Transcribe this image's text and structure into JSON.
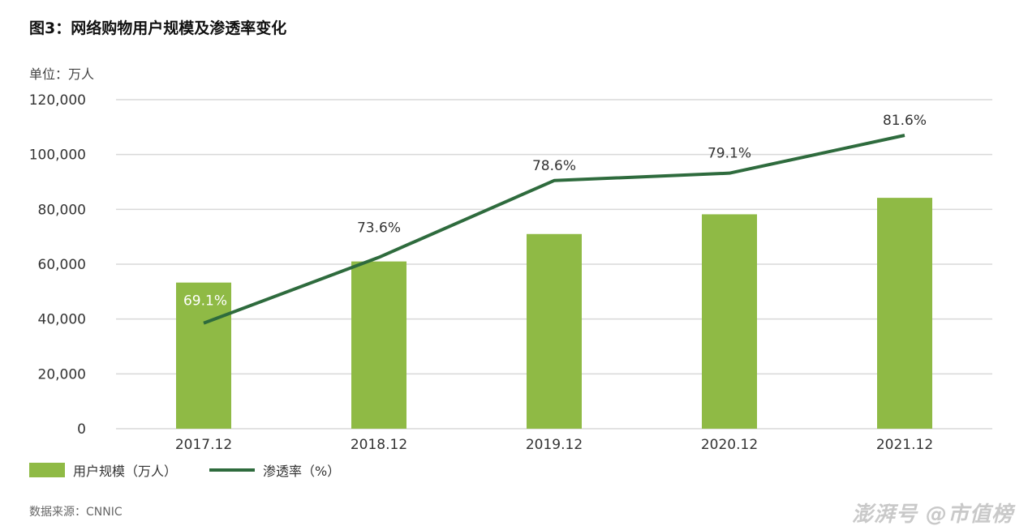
{
  "title": "图3：网络购物用户规模及渗透率变化",
  "unit_label": "单位：万人",
  "source": "数据来源：CNNIC",
  "watermark": "澎湃号 @市值榜",
  "colors": {
    "bar": "#8fba45",
    "line": "#2e6b3d",
    "grid": "#d9d9d9"
  },
  "chart_data": {
    "type": "bar",
    "categories": [
      "2017.12",
      "2018.12",
      "2019.12",
      "2020.12",
      "2021.12"
    ],
    "ylim": [
      0,
      120000
    ],
    "yticks": [
      "0",
      "20,000",
      "40,000",
      "60,000",
      "80,000",
      "100,000",
      "120,000"
    ],
    "ytick_values": [
      0,
      20000,
      40000,
      60000,
      80000,
      100000,
      120000
    ],
    "grid": true,
    "legend_position": "bottom-left",
    "series": [
      {
        "name": "用户规模（万人）",
        "type": "bar",
        "values": [
          53300,
          61000,
          71000,
          78200,
          84200
        ]
      },
      {
        "name": "渗透率（%）",
        "type": "line",
        "values": [
          69.1,
          73.6,
          78.6,
          79.1,
          81.6
        ],
        "labels": [
          "69.1%",
          "73.6%",
          "78.6%",
          "79.1%",
          "81.6%"
        ],
        "plotted_on_primary_axis": [
          38500,
          62500,
          90500,
          93200,
          107000
        ]
      }
    ]
  }
}
